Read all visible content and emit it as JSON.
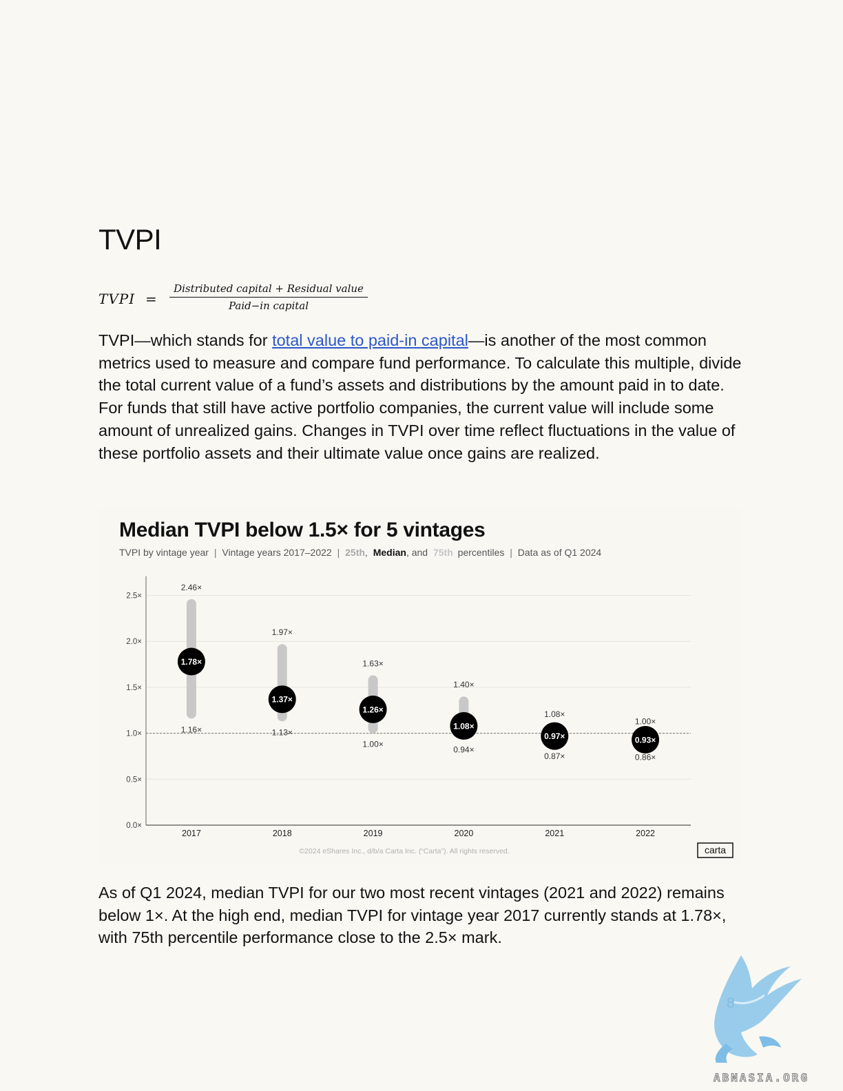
{
  "page": {
    "heading": "TVPI",
    "formula": {
      "lhs": "TVPI",
      "equals": "=",
      "numerator": "Distributed capital + Residual value",
      "denominator": "Paid−in capital"
    },
    "paragraph_1": {
      "lead": "TVPI—which stands for ",
      "link_text": "total value to paid-in capital",
      "rest": "—is another of the most common metrics used to measure and compare fund performance. To calculate this multiple, divide the total current value of a fund’s assets and distributions by the amount paid in to date. For funds that still have active portfolio companies, the current value will include some amount of unrealized gains. Changes in TVPI over time reflect fluctuations in the value of these portfolio assets and their ultimate value once gains are realized."
    },
    "paragraph_2": "As of Q1 2024, median TVPI for our two most recent vintages (2021 and 2022) remains below 1×. At the high end, median TVPI for vintage year 2017 currently stands at 1.78×, with 75th percentile performance close to the 2.5× mark.",
    "page_number": "8",
    "watermark": "ABNASIA.ORG"
  },
  "chart_data": {
    "type": "range",
    "title": "Median TVPI below 1.5× for 5 vintages",
    "subtitle": {
      "part1": "TVPI by vintage year",
      "sep": "|",
      "part2": "Vintage years 2017–2022",
      "p25": "25th",
      "comma": ",",
      "median": "Median",
      "and": ", and",
      "p75": "75th",
      "percentiles": "percentiles",
      "part4": "Data as of Q1 2024"
    },
    "categories": [
      "2017",
      "2018",
      "2019",
      "2020",
      "2021",
      "2022"
    ],
    "series": [
      {
        "name": "25th",
        "values": [
          1.16,
          1.13,
          1.0,
          0.94,
          0.87,
          0.86
        ]
      },
      {
        "name": "Median",
        "values": [
          1.78,
          1.37,
          1.26,
          1.08,
          0.97,
          0.93
        ]
      },
      {
        "name": "75th",
        "values": [
          2.46,
          1.97,
          1.63,
          1.4,
          1.08,
          1.0
        ]
      }
    ],
    "y_ticks": [
      {
        "value": 0.0,
        "label": "0.0×"
      },
      {
        "value": 0.5,
        "label": "0.5×"
      },
      {
        "value": 1.0,
        "label": "1.0×"
      },
      {
        "value": 1.5,
        "label": "1.5×"
      },
      {
        "value": 2.0,
        "label": "2.0×"
      },
      {
        "value": 2.5,
        "label": "2.5×"
      }
    ],
    "ylim": [
      0,
      2.5
    ],
    "unit_suffix": "×",
    "reference_line": 1.0,
    "grid": true,
    "colors": {
      "range_bar": "#c8c8c8",
      "median_dot": "#000000",
      "median_text": "#ffffff",
      "p25_text": "#a8a8a8",
      "median_label": "#111111"
    },
    "copyright": "©2024 eShares Inc., d/b/a Carta Inc. (“Carta”). All rights reserved.",
    "logo": "carta"
  }
}
